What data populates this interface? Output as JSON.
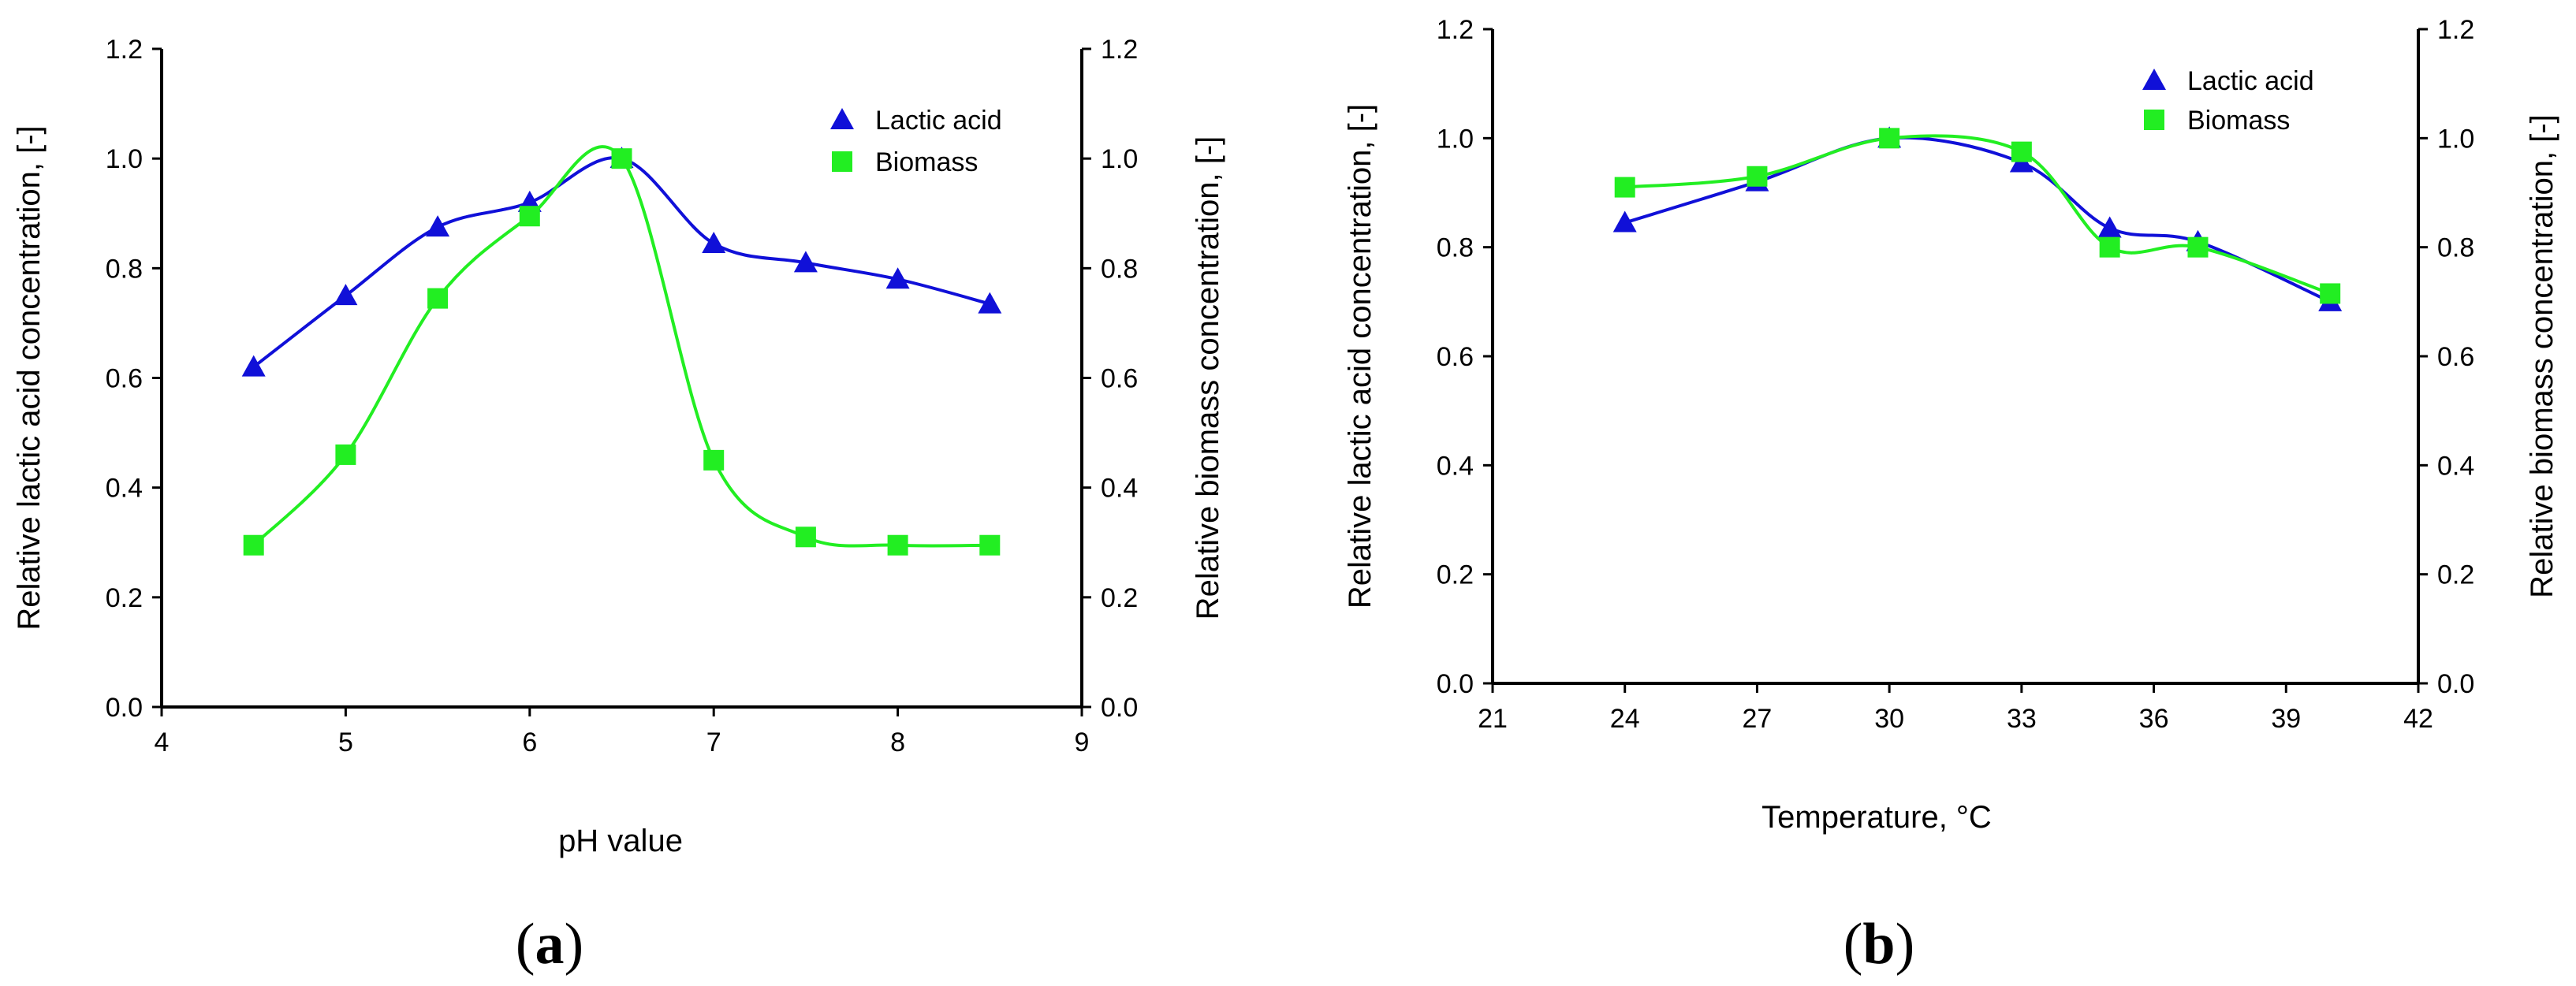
{
  "colors": {
    "lactic": "#1010d8",
    "biomass": "#22ee22",
    "axis": "#000000"
  },
  "chart_data": [
    {
      "type": "line",
      "panel": "a",
      "panel_label": {
        "open": "(",
        "letter": "a",
        "close": ")"
      },
      "xlabel": "pH value",
      "ylabel_left": "Relative lactic acid concentration, [-]",
      "ylabel_right": "Relative biomass concentration, [-]",
      "xlim": [
        4,
        9
      ],
      "xticks": [
        "4",
        "5",
        "6",
        "7",
        "8",
        "9"
      ],
      "ylim": [
        0,
        1.2
      ],
      "yticks": [
        "0.0",
        "0.2",
        "0.4",
        "0.6",
        "0.8",
        "1.0",
        "1.2"
      ],
      "legend_position": "top-right",
      "series": [
        {
          "name": "Lactic acid",
          "marker": "triangle",
          "color": "#1010d8",
          "x": [
            4.5,
            5.0,
            5.5,
            6.0,
            6.5,
            7.0,
            7.5,
            8.0,
            8.5
          ],
          "y": [
            0.62,
            0.75,
            0.875,
            0.92,
            1.0,
            0.845,
            0.81,
            0.78,
            0.735
          ]
        },
        {
          "name": "Biomass",
          "marker": "square",
          "color": "#22ee22",
          "x": [
            4.5,
            5.0,
            5.5,
            6.0,
            6.5,
            7.0,
            7.5,
            8.0,
            8.5
          ],
          "y": [
            0.295,
            0.46,
            0.745,
            0.895,
            1.0,
            0.45,
            0.31,
            0.295,
            0.295
          ]
        }
      ]
    },
    {
      "type": "line",
      "panel": "b",
      "panel_label": {
        "open": "(",
        "letter": "b",
        "close": ")"
      },
      "xlabel": "Temperature, °C",
      "ylabel_left": "Relative lactic acid concentration, [-]",
      "ylabel_right": "Relative biomass concentration, [-]",
      "xlim": [
        21,
        42
      ],
      "xticks": [
        "21",
        "24",
        "27",
        "30",
        "33",
        "36",
        "39",
        "42"
      ],
      "ylim": [
        0,
        1.2
      ],
      "yticks": [
        "0.0",
        "0.2",
        "0.4",
        "0.6",
        "0.8",
        "1.0",
        "1.2"
      ],
      "legend_position": "top-right",
      "series": [
        {
          "name": "Lactic acid",
          "marker": "triangle",
          "color": "#1010d8",
          "x": [
            24,
            27,
            30,
            33,
            35,
            37,
            40
          ],
          "y": [
            0.845,
            0.92,
            1.0,
            0.955,
            0.835,
            0.81,
            0.7
          ]
        },
        {
          "name": "Biomass",
          "marker": "square",
          "color": "#22ee22",
          "x": [
            24,
            27,
            30,
            33,
            35,
            37,
            40
          ],
          "y": [
            0.91,
            0.93,
            1.0,
            0.975,
            0.8,
            0.8,
            0.715
          ]
        }
      ]
    }
  ]
}
